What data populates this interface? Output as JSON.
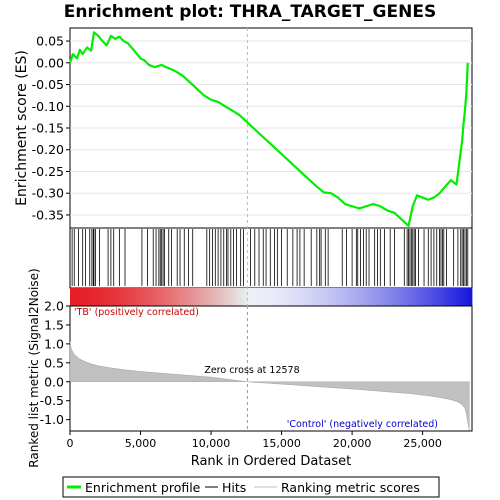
{
  "chart_data": {
    "type": "line",
    "title": "Enrichment plot: THRA_TARGET_GENES",
    "es_panel": {
      "ylabel": "Enrichment score (ES)",
      "ylim": [
        -0.38,
        0.08
      ],
      "yticks": [
        0.05,
        0.0,
        -0.05,
        -0.1,
        -0.15,
        -0.2,
        -0.25,
        -0.3,
        -0.35
      ],
      "ytick_labels": [
        "0.05",
        "0.00",
        "-0.05",
        "-0.10",
        "-0.15",
        "-0.20",
        "-0.25",
        "-0.30",
        "-0.35"
      ],
      "series": [
        {
          "name": "Enrichment profile",
          "color": "#00ee00",
          "x": [
            0,
            200,
            500,
            700,
            900,
            1200,
            1500,
            1700,
            2000,
            2300,
            2600,
            2900,
            3200,
            3500,
            3800,
            4100,
            4500,
            5000,
            5300,
            5600,
            6000,
            6500,
            6800,
            7200,
            7500,
            8000,
            8500,
            9000,
            9500,
            10000,
            10500,
            11000,
            11500,
            12000,
            12500,
            13000,
            13500,
            14000,
            14500,
            15000,
            15500,
            16000,
            16500,
            17000,
            17500,
            18000,
            18500,
            19000,
            19500,
            20000,
            20500,
            21000,
            21500,
            22000,
            22500,
            23000,
            23500,
            24000,
            24300,
            24600,
            25000,
            25400,
            25800,
            26200,
            26600,
            27000,
            27400,
            27600,
            27800,
            27900,
            28000,
            28100,
            28200
          ],
          "y": [
            0.0,
            0.02,
            0.01,
            0.03,
            0.02,
            0.035,
            0.028,
            0.07,
            0.062,
            0.05,
            0.04,
            0.062,
            0.055,
            0.06,
            0.05,
            0.045,
            0.03,
            0.01,
            0.005,
            -0.005,
            -0.01,
            -0.005,
            -0.01,
            -0.015,
            -0.02,
            -0.03,
            -0.045,
            -0.06,
            -0.075,
            -0.085,
            -0.09,
            -0.1,
            -0.11,
            -0.12,
            -0.135,
            -0.15,
            -0.165,
            -0.18,
            -0.195,
            -0.21,
            -0.225,
            -0.24,
            -0.255,
            -0.27,
            -0.285,
            -0.298,
            -0.3,
            -0.31,
            -0.325,
            -0.33,
            -0.335,
            -0.33,
            -0.325,
            -0.33,
            -0.34,
            -0.345,
            -0.36,
            -0.375,
            -0.33,
            -0.305,
            -0.31,
            -0.315,
            -0.31,
            -0.3,
            -0.285,
            -0.27,
            -0.28,
            -0.23,
            -0.18,
            -0.14,
            -0.11,
            -0.07,
            0.0
          ]
        }
      ]
    },
    "hits": {
      "name": "Hits",
      "positions": [
        150,
        300,
        600,
        900,
        1100,
        1400,
        1550,
        1650,
        1700,
        1800,
        2100,
        2700,
        2900,
        3100,
        3500,
        3900,
        5100,
        5500,
        5900,
        6100,
        6300,
        6400,
        6500,
        6600,
        6700,
        7000,
        7200,
        7600,
        7800,
        8100,
        8400,
        8700,
        9700,
        9900,
        10100,
        10300,
        10500,
        10700,
        10900,
        11100,
        11200,
        11400,
        11600,
        11800,
        12100,
        12300,
        12800,
        13100,
        13400,
        13700,
        13900,
        14200,
        14500,
        14700,
        15000,
        15400,
        15800,
        16100,
        16300,
        16600,
        17100,
        17500,
        17700,
        17800,
        18100,
        18300,
        19300,
        19600,
        20000,
        20300,
        20400,
        20600,
        20800,
        21000,
        21200,
        21600,
        21800,
        22000,
        22300,
        22700,
        23000,
        23700,
        23900,
        24000,
        24100,
        24200,
        24300,
        24400,
        24500,
        24700,
        25100,
        25400,
        25600,
        25800,
        26000,
        26200,
        26300,
        26400,
        26500,
        26700,
        27200,
        27500,
        27700,
        27800,
        27900,
        28000,
        28100,
        28200
      ]
    },
    "rank_panel": {
      "ylabel": "Ranked list metric (Signal2Noise)",
      "xlabel": "Rank in Ordered Dataset",
      "ylim": [
        -1.3,
        2.0
      ],
      "yticks": [
        2.0,
        1.5,
        1.0,
        0.5,
        0.0,
        -0.5,
        -1.0
      ],
      "ytick_labels": [
        "2.0",
        "1.5",
        "1.0",
        "0.5",
        "0.0",
        "-0.5",
        "-1.0"
      ],
      "xlim": [
        0,
        28500
      ],
      "xticks": [
        0,
        5000,
        10000,
        15000,
        20000,
        25000
      ],
      "xtick_labels": [
        "0",
        "5,000",
        "10,000",
        "15,000",
        "20,000",
        "25,000"
      ],
      "metric": {
        "name": "Ranking metric scores",
        "color": "#c0c0c0",
        "x": [
          0,
          100,
          300,
          600,
          1000,
          1500,
          2000,
          3000,
          4000,
          5000,
          6000,
          8000,
          10000,
          12578,
          15000,
          18000,
          20000,
          22000,
          24000,
          25000,
          26000,
          27000,
          27500,
          27800,
          28000,
          28100,
          28200,
          28300
        ],
        "y": [
          1.05,
          0.85,
          0.72,
          0.62,
          0.54,
          0.47,
          0.42,
          0.36,
          0.31,
          0.27,
          0.24,
          0.18,
          0.12,
          0.0,
          -0.06,
          -0.14,
          -0.19,
          -0.25,
          -0.31,
          -0.35,
          -0.4,
          -0.47,
          -0.53,
          -0.6,
          -0.7,
          -0.85,
          -1.05,
          -1.28
        ]
      },
      "zero_cross": 12578,
      "annotations": {
        "positive": "'TB' (positively correlated)",
        "negative": "'Control' (negatively correlated)",
        "zero_cross": "Zero cross at 12578"
      }
    },
    "legend": {
      "placement": "bottom",
      "entries": [
        {
          "label": "Enrichment profile",
          "color": "#00ee00"
        },
        {
          "label": "Hits",
          "color": "#000000"
        },
        {
          "label": "Ranking metric scores",
          "color": "#c0c0c0"
        }
      ]
    }
  }
}
